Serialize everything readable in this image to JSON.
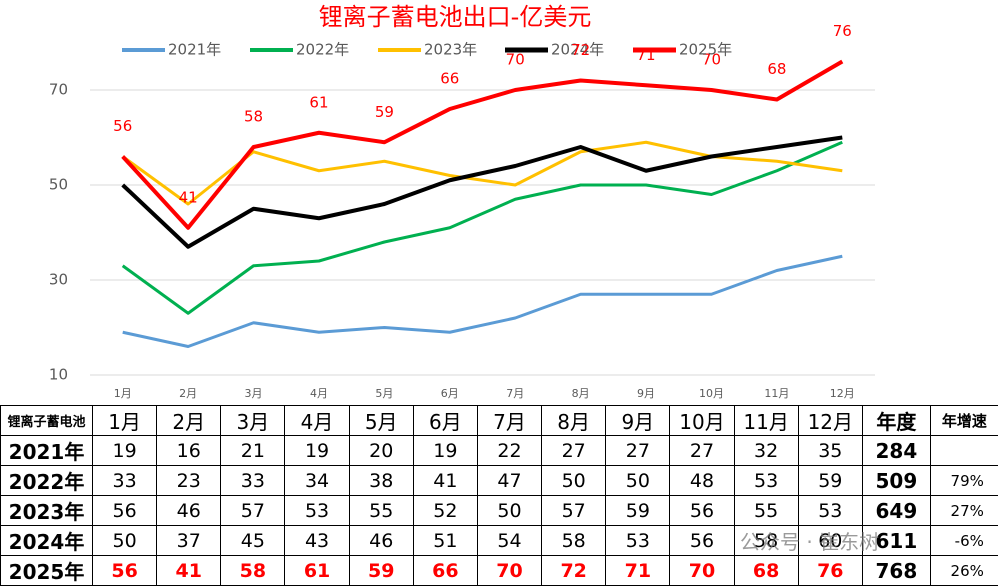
{
  "chart_data": {
    "type": "line",
    "title": "锂离子蓄电池出口-亿美元",
    "categories": [
      "1月",
      "2月",
      "3月",
      "4月",
      "5月",
      "6月",
      "7月",
      "8月",
      "9月",
      "10月",
      "11月",
      "12月"
    ],
    "series": [
      {
        "name": "2021年",
        "color": "#5b9bd5",
        "values": [
          19,
          16,
          21,
          19,
          20,
          19,
          22,
          27,
          27,
          27,
          32,
          35
        ]
      },
      {
        "name": "2022年",
        "color": "#00b050",
        "values": [
          33,
          23,
          33,
          34,
          38,
          41,
          47,
          50,
          50,
          48,
          53,
          59
        ]
      },
      {
        "name": "2023年",
        "color": "#ffc000",
        "values": [
          56,
          46,
          57,
          53,
          55,
          52,
          50,
          57,
          59,
          56,
          55,
          53
        ]
      },
      {
        "name": "2024年",
        "color": "#000000",
        "values": [
          50,
          37,
          45,
          43,
          46,
          51,
          54,
          58,
          53,
          56,
          58,
          60
        ]
      },
      {
        "name": "2025年",
        "color": "#ff0000",
        "values": [
          56,
          41,
          58,
          61,
          59,
          66,
          70,
          72,
          71,
          70,
          68,
          76
        ],
        "data_labels": true
      }
    ],
    "ylim": [
      10,
      80
    ],
    "yticks": [
      10,
      30,
      50,
      70
    ],
    "grid": true
  },
  "table": {
    "corner": "锂离子蓄电池",
    "total_header": "年度",
    "growth_header": "年增速",
    "totals": [
      284,
      509,
      649,
      611,
      768
    ],
    "growth": [
      null,
      {
        "value": 79,
        "label": "79%"
      },
      {
        "value": 27,
        "label": "27%"
      },
      {
        "value": -6,
        "label": "-6%"
      },
      {
        "value": 26,
        "label": "26%"
      }
    ]
  },
  "watermark": "公众号 · 崔东树"
}
